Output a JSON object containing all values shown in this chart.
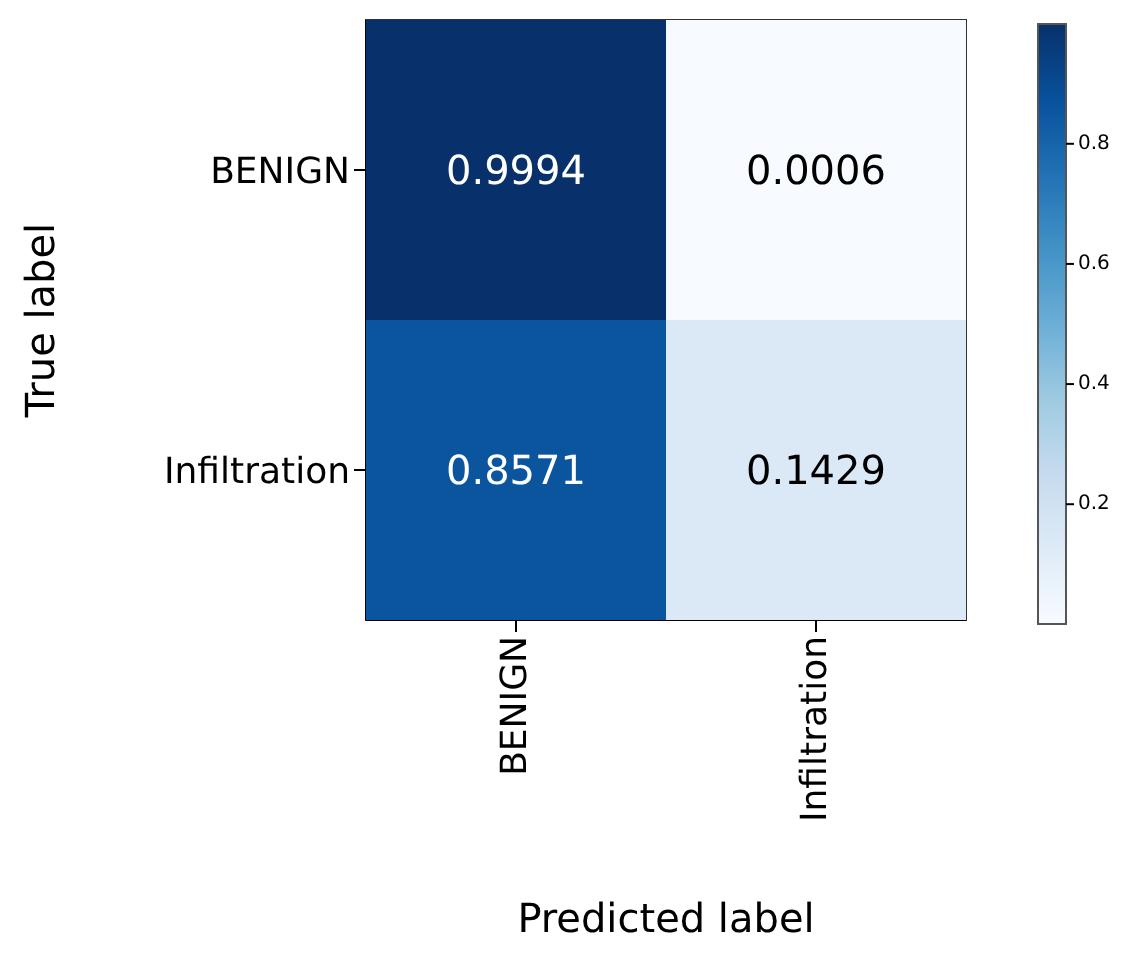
{
  "chart_data": {
    "type": "heatmap",
    "xlabel": "Predicted label",
    "ylabel": "True label",
    "categories": [
      "BENIGN",
      "Infiltration"
    ],
    "y_categories": [
      "BENIGN",
      "Infiltration"
    ],
    "cells": [
      [
        0.9994,
        0.0006
      ],
      [
        0.8571,
        0.1429
      ]
    ],
    "data_labels": true,
    "clim": [
      0.0006,
      0.9994
    ],
    "cticks": [
      0.2,
      0.4,
      0.6,
      0.8
    ]
  }
}
